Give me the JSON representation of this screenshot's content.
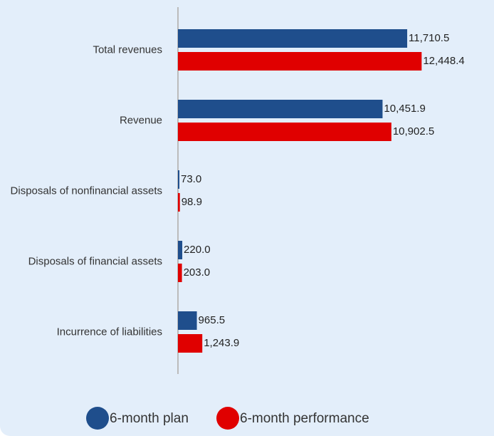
{
  "chart_data": {
    "type": "hbar",
    "categories": [
      "Total revenues",
      "Revenue",
      "Disposals of nonfinancial assets",
      "Disposals of financial assets",
      "Incurrence of liabilities"
    ],
    "series": [
      {
        "name": "6-month plan",
        "color": "#1f4e8c",
        "values": [
          11710.5,
          10451.9,
          73.0,
          220.0,
          965.5
        ],
        "value_labels": [
          "11,710.5",
          "10,451.9",
          "73.0",
          "220.0",
          "965.5"
        ]
      },
      {
        "name": "6-month performance",
        "color": "#e00000",
        "values": [
          12448.4,
          10902.5,
          98.9,
          203.0,
          1243.9
        ],
        "value_labels": [
          "12,448.4",
          "10,902.5",
          "98.9",
          "203.0",
          "1,243.9"
        ]
      }
    ],
    "xlim": [
      0,
      16000
    ]
  }
}
